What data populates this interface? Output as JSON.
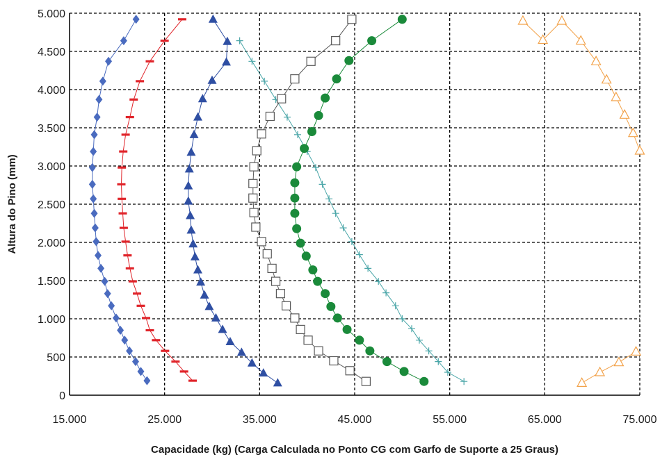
{
  "chart_data": {
    "type": "scatter",
    "title": "",
    "xlabel": "Capacidade (kg) (Carga Calculada no Ponto CG com Garfo de Suporte a 25 Graus)",
    "ylabel": "Altura do Pino (mm)",
    "xlim": [
      15000,
      75000
    ],
    "ylim": [
      0,
      5000
    ],
    "x_ticks": [
      15000,
      25000,
      35000,
      45000,
      55000,
      65000,
      75000
    ],
    "x_tick_labels": [
      "15.000",
      "25.000",
      "35.000",
      "45.000",
      "55.000",
      "65.000",
      "75.000"
    ],
    "y_ticks": [
      0,
      500,
      1000,
      1500,
      2000,
      2500,
      3000,
      3500,
      4000,
      4500,
      5000
    ],
    "y_tick_labels": [
      "0",
      "500",
      "1.000",
      "1.500",
      "2.000",
      "2.500",
      "3.000",
      "3.500",
      "4.000",
      "4.500",
      "5.000"
    ],
    "grid": "dashed",
    "legend": "none",
    "series": [
      {
        "color": "#4a6bbf",
        "marker": "diamond",
        "connected": true,
        "points": [
          [
            23150,
            190
          ],
          [
            22500,
            310
          ],
          [
            21950,
            440
          ],
          [
            21300,
            580
          ],
          [
            20800,
            720
          ],
          [
            20350,
            850
          ],
          [
            19900,
            1010
          ],
          [
            19400,
            1170
          ],
          [
            19000,
            1330
          ],
          [
            18700,
            1490
          ],
          [
            18300,
            1660
          ],
          [
            18000,
            1830
          ],
          [
            17800,
            2010
          ],
          [
            17700,
            2190
          ],
          [
            17600,
            2380
          ],
          [
            17500,
            2570
          ],
          [
            17400,
            2760
          ],
          [
            17400,
            2980
          ],
          [
            17500,
            3190
          ],
          [
            17600,
            3410
          ],
          [
            17900,
            3640
          ],
          [
            18100,
            3870
          ],
          [
            18500,
            4110
          ],
          [
            19100,
            4370
          ],
          [
            20700,
            4640
          ],
          [
            22000,
            4920
          ]
        ]
      },
      {
        "color": "#e0242a",
        "marker": "dash",
        "connected": true,
        "points": [
          [
            27950,
            190
          ],
          [
            27050,
            310
          ],
          [
            26150,
            440
          ],
          [
            25050,
            580
          ],
          [
            24100,
            720
          ],
          [
            23450,
            850
          ],
          [
            23050,
            1010
          ],
          [
            22500,
            1170
          ],
          [
            22100,
            1330
          ],
          [
            21650,
            1490
          ],
          [
            21350,
            1660
          ],
          [
            21100,
            1830
          ],
          [
            20900,
            2010
          ],
          [
            20700,
            2190
          ],
          [
            20600,
            2380
          ],
          [
            20500,
            2570
          ],
          [
            20450,
            2760
          ],
          [
            20500,
            2980
          ],
          [
            20650,
            3190
          ],
          [
            20900,
            3410
          ],
          [
            21350,
            3640
          ],
          [
            21750,
            3870
          ],
          [
            22400,
            4110
          ],
          [
            23450,
            4370
          ],
          [
            25000,
            4640
          ],
          [
            26850,
            4920
          ]
        ]
      },
      {
        "color": "#2f4fa3",
        "marker": "triangle",
        "connected": true,
        "points": [
          [
            36900,
            160
          ],
          [
            35400,
            290
          ],
          [
            34200,
            420
          ],
          [
            33100,
            560
          ],
          [
            31900,
            700
          ],
          [
            31100,
            860
          ],
          [
            30400,
            1010
          ],
          [
            29700,
            1160
          ],
          [
            29200,
            1310
          ],
          [
            28800,
            1480
          ],
          [
            28500,
            1640
          ],
          [
            28200,
            1810
          ],
          [
            28000,
            1980
          ],
          [
            27800,
            2160
          ],
          [
            27700,
            2350
          ],
          [
            27500,
            2540
          ],
          [
            27500,
            2740
          ],
          [
            27600,
            2960
          ],
          [
            27800,
            3180
          ],
          [
            28100,
            3410
          ],
          [
            28500,
            3640
          ],
          [
            29000,
            3880
          ],
          [
            30000,
            4120
          ],
          [
            31500,
            4360
          ],
          [
            31600,
            4630
          ],
          [
            30100,
            4920
          ]
        ]
      },
      {
        "color": "#4aa6a8",
        "marker": "plus",
        "connected": true,
        "points": [
          [
            56500,
            180
          ],
          [
            54800,
            300
          ],
          [
            53800,
            440
          ],
          [
            52800,
            580
          ],
          [
            51800,
            720
          ],
          [
            51000,
            870
          ],
          [
            50000,
            1000
          ],
          [
            49300,
            1170
          ],
          [
            48300,
            1340
          ],
          [
            47500,
            1490
          ],
          [
            46400,
            1660
          ],
          [
            45500,
            1840
          ],
          [
            44700,
            2010
          ],
          [
            43800,
            2190
          ],
          [
            43000,
            2380
          ],
          [
            42300,
            2570
          ],
          [
            41600,
            2760
          ],
          [
            40900,
            2980
          ],
          [
            40000,
            3190
          ],
          [
            39000,
            3410
          ],
          [
            37900,
            3640
          ],
          [
            36700,
            3870
          ],
          [
            35500,
            4110
          ],
          [
            34200,
            4370
          ],
          [
            32900,
            4640
          ]
        ]
      },
      {
        "color": "#5a5a5a",
        "marker": "square",
        "connected": true,
        "points": [
          [
            46200,
            180
          ],
          [
            44500,
            320
          ],
          [
            42800,
            450
          ],
          [
            41200,
            580
          ],
          [
            40100,
            720
          ],
          [
            39300,
            860
          ],
          [
            38700,
            1010
          ],
          [
            37800,
            1170
          ],
          [
            37200,
            1330
          ],
          [
            36700,
            1490
          ],
          [
            36300,
            1660
          ],
          [
            35800,
            1850
          ],
          [
            35200,
            2010
          ],
          [
            34600,
            2200
          ],
          [
            34400,
            2390
          ],
          [
            34300,
            2580
          ],
          [
            34300,
            2770
          ],
          [
            34400,
            2990
          ],
          [
            34700,
            3200
          ],
          [
            35200,
            3420
          ],
          [
            36100,
            3650
          ],
          [
            37300,
            3880
          ],
          [
            38700,
            4140
          ],
          [
            40400,
            4370
          ],
          [
            43000,
            4640
          ],
          [
            44700,
            4920
          ]
        ]
      },
      {
        "color": "#1a8a3a",
        "marker": "circle",
        "connected": true,
        "points": [
          [
            52300,
            180
          ],
          [
            50200,
            310
          ],
          [
            48400,
            440
          ],
          [
            46600,
            580
          ],
          [
            45500,
            720
          ],
          [
            44200,
            860
          ],
          [
            43200,
            1010
          ],
          [
            42500,
            1160
          ],
          [
            41900,
            1330
          ],
          [
            41100,
            1490
          ],
          [
            40600,
            1640
          ],
          [
            39900,
            1820
          ],
          [
            39300,
            1990
          ],
          [
            38900,
            2180
          ],
          [
            38700,
            2380
          ],
          [
            38700,
            2580
          ],
          [
            38700,
            2780
          ],
          [
            38900,
            2990
          ],
          [
            39700,
            3230
          ],
          [
            40500,
            3450
          ],
          [
            41200,
            3660
          ],
          [
            41900,
            3890
          ],
          [
            43100,
            4140
          ],
          [
            44400,
            4380
          ],
          [
            46800,
            4640
          ],
          [
            50000,
            4920
          ]
        ]
      },
      {
        "color": "#f2a24a",
        "marker": "triangle-open",
        "connected": true,
        "points": [
          [
            68900,
            160
          ],
          [
            70800,
            300
          ],
          [
            72800,
            430
          ],
          [
            74600,
            570
          ]
        ]
      },
      {
        "color": "#f2a24a",
        "marker": "triangle-open",
        "connected": true,
        "points": [
          [
            75000,
            3200
          ],
          [
            74300,
            3430
          ],
          [
            73400,
            3670
          ],
          [
            72500,
            3900
          ],
          [
            71500,
            4130
          ],
          [
            70400,
            4370
          ],
          [
            68800,
            4640
          ],
          [
            66800,
            4900
          ],
          [
            64800,
            4650
          ],
          [
            62700,
            4900
          ]
        ]
      }
    ]
  }
}
